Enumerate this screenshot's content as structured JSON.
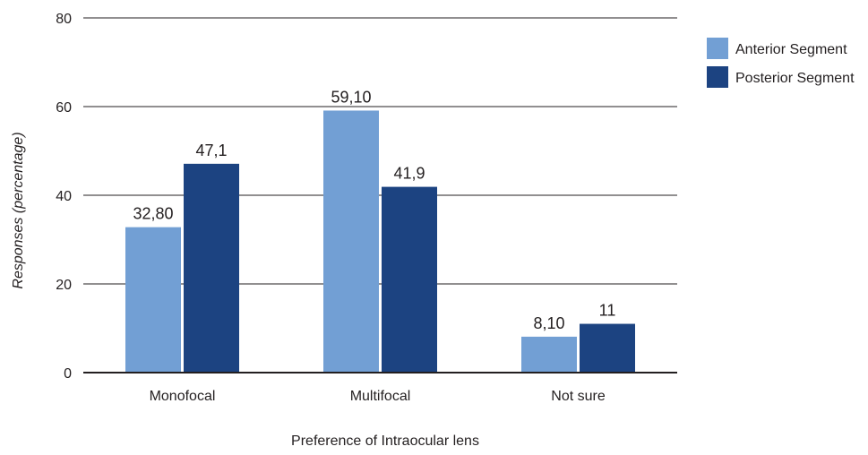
{
  "chart_data": {
    "type": "bar",
    "title": "",
    "xlabel": "Preference of Intraocular lens",
    "ylabel": "Responses (percentage)",
    "ylim": [
      0,
      80
    ],
    "yticks": [
      0,
      20,
      40,
      60,
      80
    ],
    "ytick_labels": [
      "0",
      "20",
      "40",
      "60",
      "80"
    ],
    "grid": true,
    "legend_position": "top-right",
    "categories": [
      "Monofocal",
      "Multifocal",
      "Not sure"
    ],
    "series": [
      {
        "name": "Anterior Segment",
        "color": "#729fd4",
        "values": [
          32.8,
          59.1,
          8.1
        ],
        "labels": [
          "32,80",
          "59,10",
          "8,10"
        ]
      },
      {
        "name": "Posterior Segment",
        "color": "#1c4381",
        "values": [
          47.1,
          41.9,
          11
        ],
        "labels": [
          "47,1",
          "41,9",
          "11"
        ]
      }
    ],
    "colors": {
      "gridline": "#231f20",
      "text": "#231f20"
    }
  }
}
